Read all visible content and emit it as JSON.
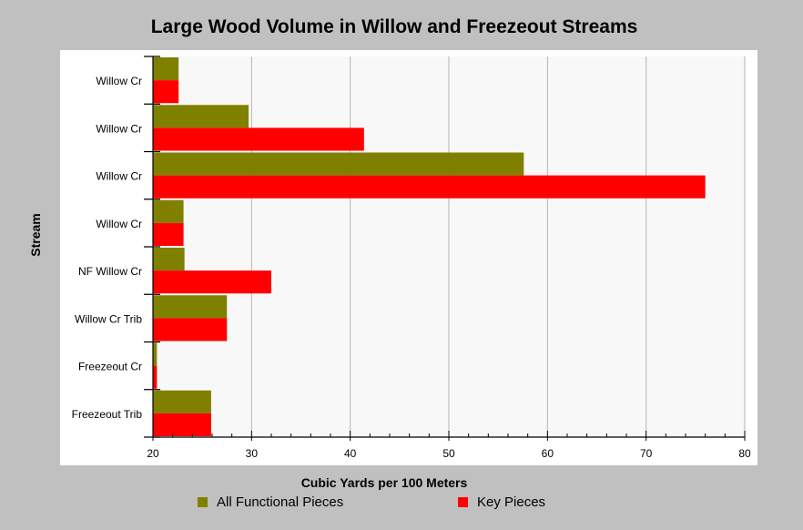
{
  "chart_data": {
    "type": "bar",
    "orientation": "horizontal",
    "title": "Large Wood Volume in Willow and Freezeout Streams",
    "xlabel": "Cubic Yards per 100 Meters",
    "ylabel": "Stream",
    "xlim": [
      20,
      80
    ],
    "xticks": [
      20,
      30,
      40,
      50,
      60,
      70,
      80
    ],
    "grid": true,
    "legend_position": "bottom",
    "categories": [
      "Willow Cr",
      "Willow Cr",
      "Willow Cr",
      "Willow Cr",
      "NF Willow Cr",
      "Willow Cr Trib",
      "Freezeout Cr",
      "Freezeout Trib"
    ],
    "series": [
      {
        "name": "All Functional Pieces",
        "color": "#808000",
        "values": [
          22.6,
          29.7,
          57.6,
          23.1,
          23.2,
          27.5,
          20.4,
          25.9
        ]
      },
      {
        "name": "Key Pieces",
        "color": "#ff0000",
        "values": [
          22.6,
          41.4,
          76.0,
          23.1,
          32.0,
          27.5,
          20.4,
          25.9
        ]
      }
    ]
  }
}
